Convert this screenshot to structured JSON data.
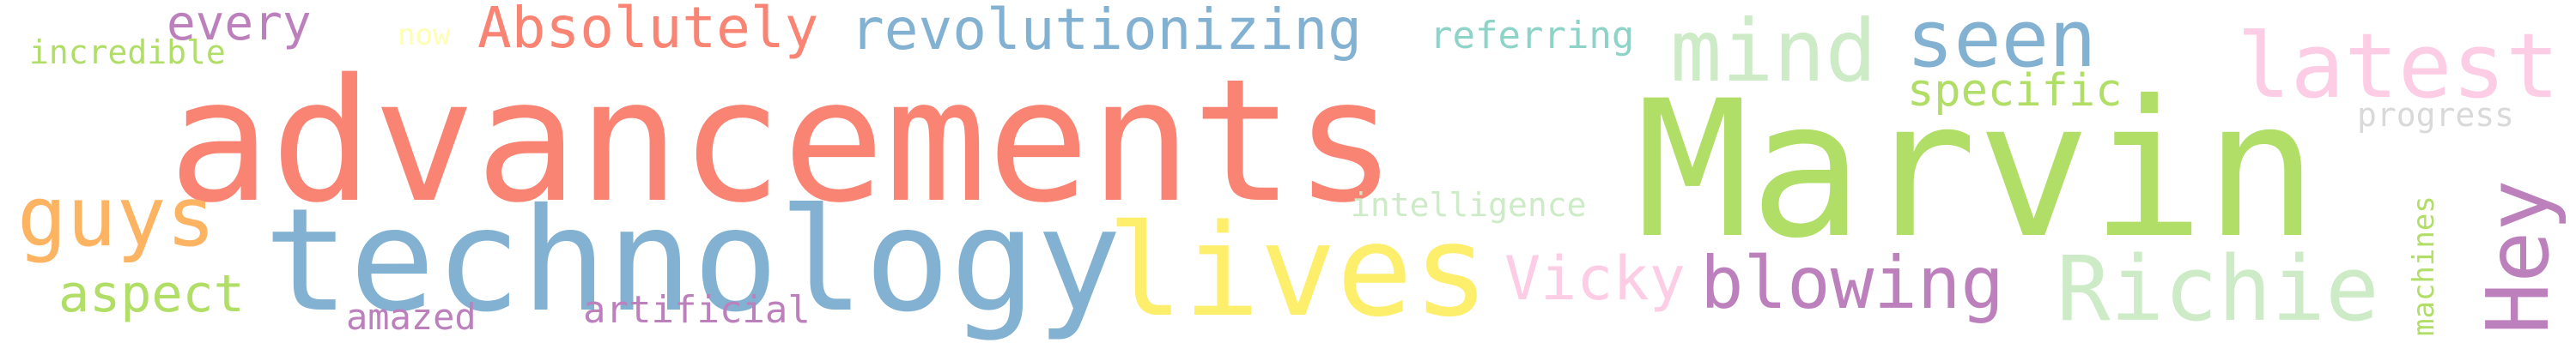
{
  "word_cloud": {
    "words": [
      {
        "text": "advancements",
        "color": "#f98474"
      },
      {
        "text": "Marvin",
        "color": "#b1de67"
      },
      {
        "text": "technology",
        "color": "#82b1d2"
      },
      {
        "text": "lives",
        "color": "#fdee6c"
      },
      {
        "text": "Richie",
        "color": "#ccebc6"
      },
      {
        "text": "mind",
        "color": "#ccebc6"
      },
      {
        "text": "seen",
        "color": "#82b1d2"
      },
      {
        "text": "latest",
        "color": "#fccde5"
      },
      {
        "text": "guys",
        "color": "#fdb462"
      },
      {
        "text": "Hey",
        "color": "#bc80bd"
      },
      {
        "text": "blowing",
        "color": "#bc80bd"
      },
      {
        "text": "Absolutely",
        "color": "#f98474"
      },
      {
        "text": "revolutionizing",
        "color": "#82b1d2"
      },
      {
        "text": "every",
        "color": "#bc80bd"
      },
      {
        "text": "Vicky",
        "color": "#fccde5"
      },
      {
        "text": "aspect",
        "color": "#b1de67"
      },
      {
        "text": "specific",
        "color": "#b1de67"
      },
      {
        "text": "referring",
        "color": "#8dd3c7"
      },
      {
        "text": "artificial",
        "color": "#bc80bd"
      },
      {
        "text": "amazed",
        "color": "#bc80bd"
      },
      {
        "text": "incredible",
        "color": "#b1de67"
      },
      {
        "text": "intelligence",
        "color": "#ccebc6"
      },
      {
        "text": "progress",
        "color": "#d9d9d9"
      },
      {
        "text": "machines",
        "color": "#b1de67"
      },
      {
        "text": "now",
        "color": "#ffffb3"
      }
    ]
  }
}
